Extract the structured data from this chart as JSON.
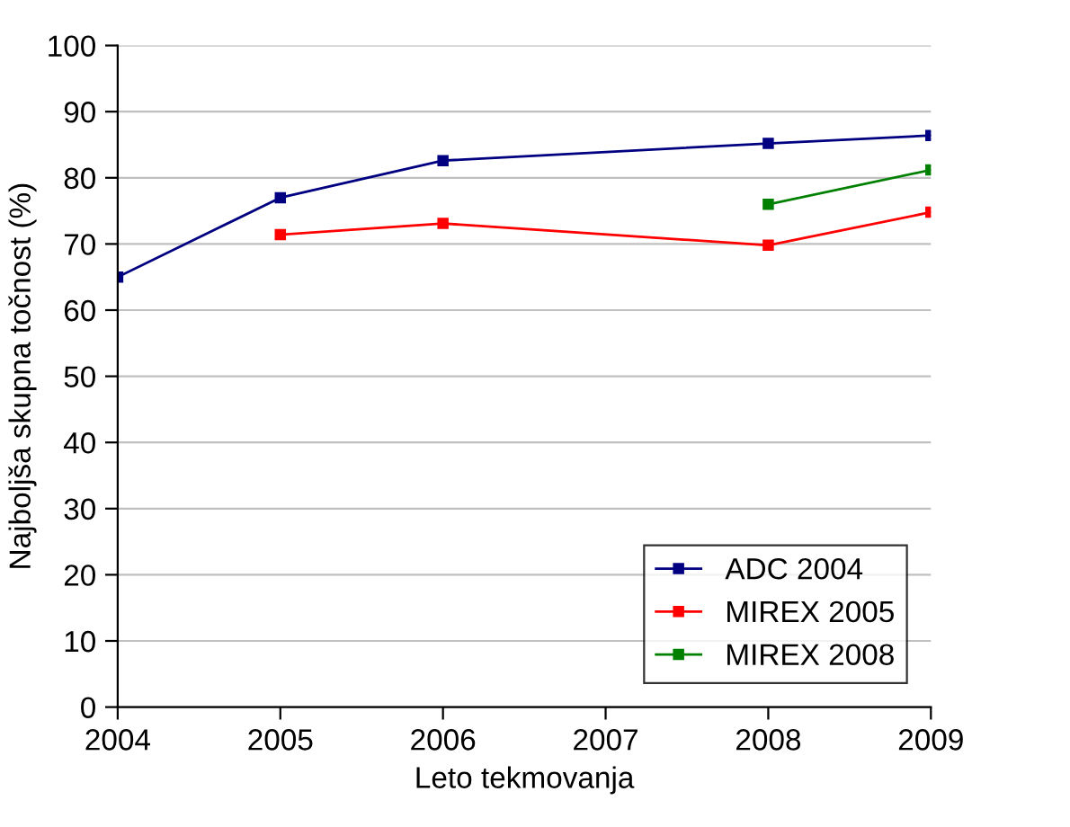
{
  "chart_data": {
    "type": "line",
    "xlabel": "Leto tekmovanja",
    "ylabel": "Najboljša skupna točnost (%)",
    "xlim": [
      2004,
      2009
    ],
    "xticks": [
      2004,
      2005,
      2006,
      2007,
      2008,
      2009
    ],
    "ylim": [
      0,
      100
    ],
    "yticks": [
      0,
      10,
      20,
      30,
      40,
      50,
      60,
      70,
      80,
      90,
      100
    ],
    "grid": "y",
    "legend": "bottom right",
    "marker": "square",
    "line_style": "solid",
    "series": [
      {
        "name": "ADC 2004",
        "color": "#000080",
        "x": [
          2004,
          2005,
          2006,
          2008,
          2009
        ],
        "values": [
          65,
          77,
          82.6,
          85.2,
          86.4
        ]
      },
      {
        "name": "MIREX 2005",
        "color": "#ff0000",
        "x": [
          2005,
          2006,
          2008,
          2009
        ],
        "values": [
          71.4,
          73.1,
          69.8,
          74.8
        ]
      },
      {
        "name": "MIREX 2008",
        "color": "#008000",
        "x": [
          2008,
          2009
        ],
        "values": [
          76,
          81.2
        ]
      }
    ]
  }
}
